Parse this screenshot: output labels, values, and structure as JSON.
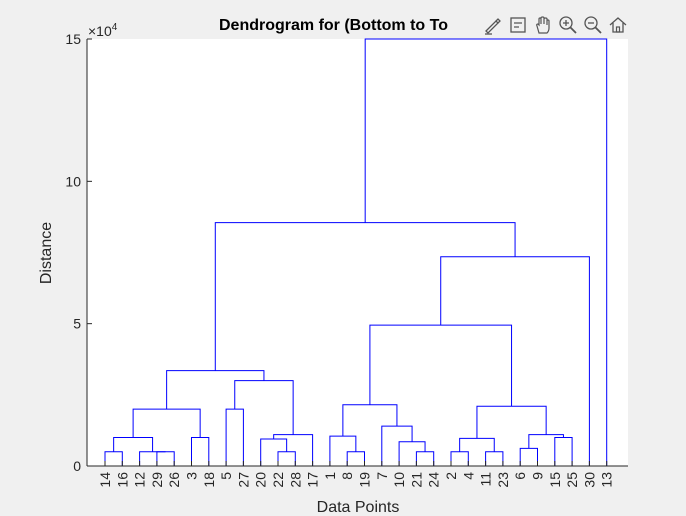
{
  "chart_data": {
    "type": "dendrogram",
    "title": "Dendrogram for (Bottom to To",
    "xlabel": "Data Points",
    "ylabel": "Distance",
    "y_exponent_label": "×10",
    "y_exponent": "4",
    "ylim": [
      0,
      15
    ],
    "yticks": [
      0,
      5,
      10,
      15
    ],
    "leaf_order": [
      "14",
      "16",
      "12",
      "29",
      "26",
      "3",
      "18",
      "5",
      "27",
      "20",
      "22",
      "28",
      "17",
      "1",
      "8",
      "19",
      "7",
      "10",
      "21",
      "24",
      "2",
      "4",
      "11",
      "23",
      "6",
      "9",
      "15",
      "25",
      "30",
      "13"
    ],
    "line_color": "#0000ff",
    "merges": [
      {
        "a": "L:14",
        "b": "L:16",
        "h": 0.5,
        "id": "m1"
      },
      {
        "a": "L:29",
        "b": "L:26",
        "h": 0.5,
        "id": "m2"
      },
      {
        "a": "L:12",
        "b": "m2",
        "h": 0.5,
        "id": "m3"
      },
      {
        "a": "m1",
        "b": "m3",
        "h": 1.0,
        "id": "m4"
      },
      {
        "a": "L:3",
        "b": "L:18",
        "h": 1.0,
        "id": "m5"
      },
      {
        "a": "m4",
        "b": "m5",
        "h": 2.0,
        "id": "m6"
      },
      {
        "a": "L:5",
        "b": "L:27",
        "h": 2.0,
        "id": "m7"
      },
      {
        "a": "L:22",
        "b": "L:28",
        "h": 0.5,
        "id": "m8"
      },
      {
        "a": "L:20",
        "b": "m8",
        "h": 0.95,
        "id": "m9"
      },
      {
        "a": "m9",
        "b": "L:17",
        "h": 1.1,
        "id": "m10"
      },
      {
        "a": "m7",
        "b": "m10",
        "h": 3.0,
        "id": "m11"
      },
      {
        "a": "m6",
        "b": "m11",
        "h": 3.35,
        "id": "m12"
      },
      {
        "a": "L:8",
        "b": "L:19",
        "h": 0.5,
        "id": "m13"
      },
      {
        "a": "L:1",
        "b": "m13",
        "h": 1.05,
        "id": "m14"
      },
      {
        "a": "L:21",
        "b": "L:24",
        "h": 0.5,
        "id": "m15"
      },
      {
        "a": "L:10",
        "b": "m15",
        "h": 0.85,
        "id": "m16"
      },
      {
        "a": "L:7",
        "b": "m16",
        "h": 1.4,
        "id": "m17"
      },
      {
        "a": "m14",
        "b": "m17",
        "h": 2.15,
        "id": "m18"
      },
      {
        "a": "L:2",
        "b": "L:4",
        "h": 0.5,
        "id": "m19"
      },
      {
        "a": "L:11",
        "b": "L:23",
        "h": 0.5,
        "id": "m20"
      },
      {
        "a": "m19",
        "b": "m20",
        "h": 0.97,
        "id": "m21"
      },
      {
        "a": "L:6",
        "b": "L:9",
        "h": 0.62,
        "id": "m22"
      },
      {
        "a": "L:15",
        "b": "L:25",
        "h": 1.0,
        "id": "m23"
      },
      {
        "a": "m22",
        "b": "m23",
        "h": 1.1,
        "id": "m24"
      },
      {
        "a": "m21",
        "b": "m24",
        "h": 2.1,
        "id": "m25"
      },
      {
        "a": "m18",
        "b": "m25",
        "h": 4.95,
        "id": "m26"
      },
      {
        "a": "m26",
        "b": "L:30",
        "h": 7.35,
        "id": "m27"
      },
      {
        "a": "m12",
        "b": "m27",
        "h": 8.55,
        "id": "m28"
      },
      {
        "a": "m28",
        "b": "L:13",
        "h": 15.0,
        "id": "m29"
      }
    ]
  },
  "toolbar": {
    "icons": [
      "brush-icon",
      "data-tips-icon",
      "pan-icon",
      "zoom-in-icon",
      "zoom-out-icon",
      "home-icon"
    ]
  }
}
